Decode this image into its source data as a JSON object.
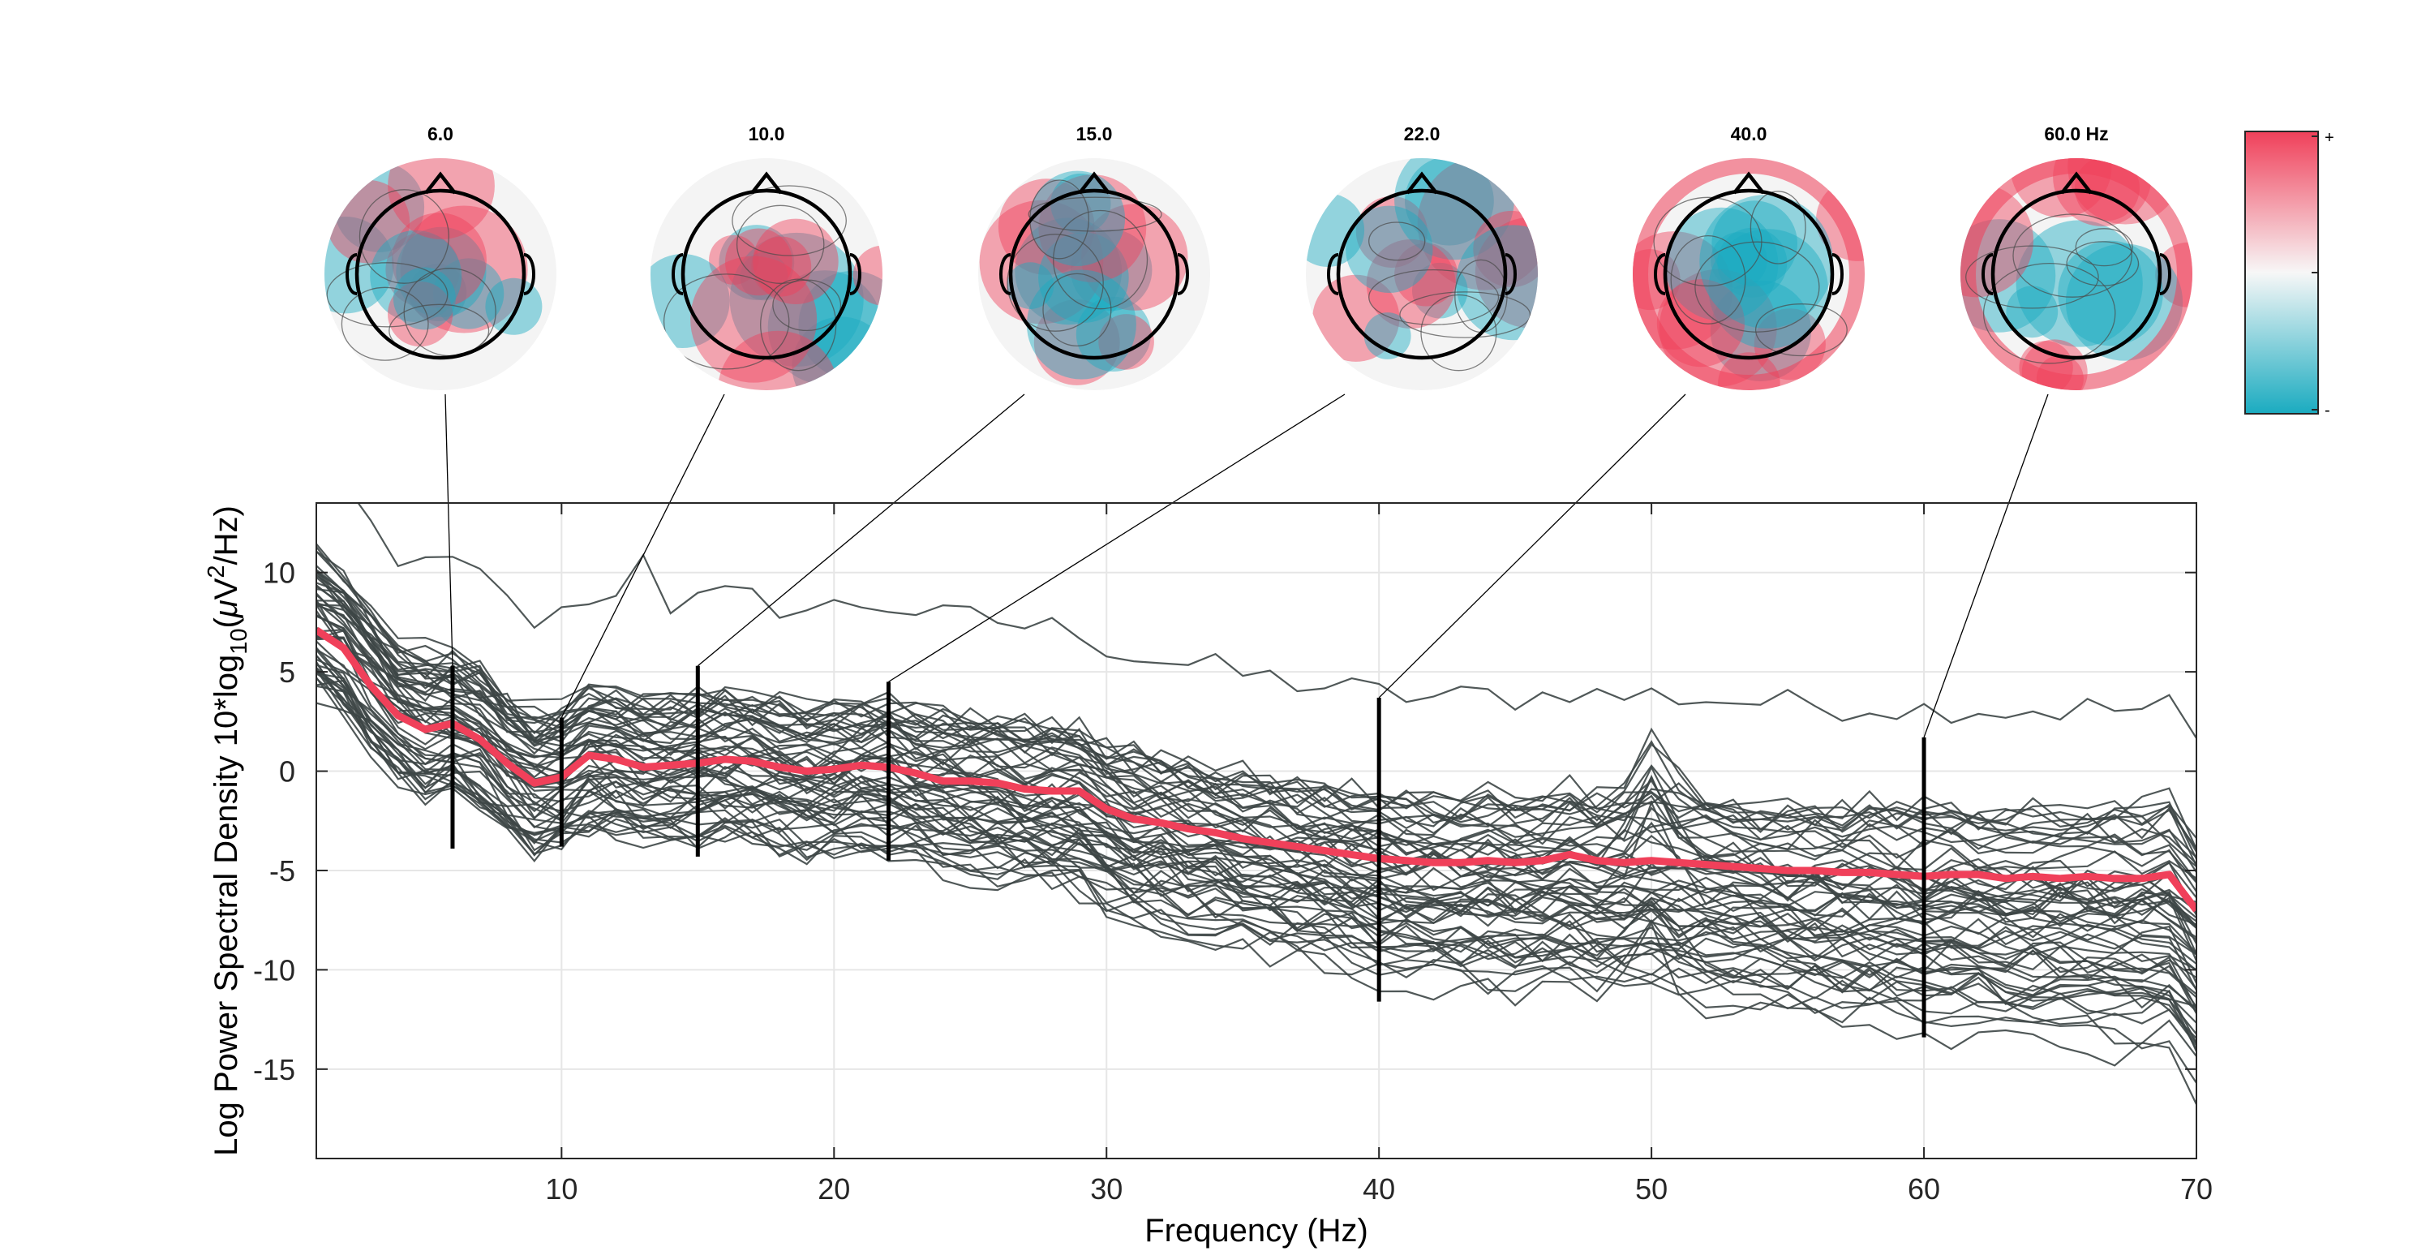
{
  "chart_data": {
    "type": "line",
    "xlabel": "Frequency (Hz)",
    "ylabel": "Log Power Spectral Density 10*log10(μV²/Hz)",
    "ylabel_parts": {
      "main": "Log Power Spectral Density 10*log",
      "sub": "10",
      "open": "(",
      "mu": "μ",
      "v": "V",
      "sup": "2",
      "rest": "/Hz)"
    },
    "xlim": [
      1,
      70
    ],
    "ylim": [
      -19.5,
      13.5
    ],
    "xticks": [
      10,
      20,
      30,
      40,
      50,
      60,
      70
    ],
    "yticks": [
      -15,
      -10,
      -5,
      0,
      5,
      10
    ],
    "grid": true,
    "mean_color": "#f0405a",
    "channel_color": "#3d4646",
    "mean_spectrum": {
      "x": [
        1,
        2,
        3,
        4,
        5,
        6,
        7,
        8,
        9,
        10,
        11,
        12,
        13,
        14,
        15,
        16,
        17,
        18,
        19,
        20,
        21,
        22,
        23,
        24,
        25,
        26,
        27,
        28,
        29,
        30,
        31,
        32,
        33,
        34,
        35,
        36,
        37,
        38,
        39,
        40,
        41,
        42,
        43,
        44,
        45,
        46,
        47,
        48,
        49,
        50,
        51,
        52,
        53,
        54,
        55,
        56,
        57,
        58,
        59,
        60,
        61,
        62,
        63,
        64,
        65,
        66,
        67,
        68,
        69,
        70
      ],
      "y": [
        7.1,
        6.2,
        4.3,
        2.8,
        2.1,
        2.4,
        1.6,
        0.4,
        -0.6,
        -0.3,
        0.8,
        0.6,
        0.2,
        0.3,
        0.4,
        0.6,
        0.5,
        0.2,
        0.0,
        0.1,
        0.3,
        0.2,
        -0.1,
        -0.5,
        -0.5,
        -0.6,
        -0.9,
        -1.0,
        -1.0,
        -1.9,
        -2.4,
        -2.6,
        -2.9,
        -3.1,
        -3.4,
        -3.6,
        -3.8,
        -4.0,
        -4.2,
        -4.4,
        -4.5,
        -4.6,
        -4.6,
        -4.5,
        -4.6,
        -4.5,
        -4.2,
        -4.5,
        -4.6,
        -4.5,
        -4.6,
        -4.7,
        -4.8,
        -4.9,
        -5.0,
        -5.0,
        -5.1,
        -5.1,
        -5.2,
        -5.3,
        -5.2,
        -5.2,
        -5.4,
        -5.3,
        -5.4,
        -5.3,
        -5.4,
        -5.4,
        -5.2,
        -7.0
      ]
    },
    "channel_count": 62,
    "markers": [
      {
        "freq": 6,
        "top": 5.3,
        "bottom": -3.9
      },
      {
        "freq": 10,
        "top": 2.7,
        "bottom": -3.8
      },
      {
        "freq": 15,
        "top": 5.3,
        "bottom": -4.3
      },
      {
        "freq": 22,
        "top": 4.5,
        "bottom": -4.5
      },
      {
        "freq": 40,
        "top": 3.7,
        "bottom": -11.6
      },
      {
        "freq": 60,
        "top": 1.7,
        "bottom": -13.4
      }
    ],
    "topoplots": [
      {
        "title": "6.0",
        "freq": 6
      },
      {
        "title": "10.0",
        "freq": 10
      },
      {
        "title": "15.0",
        "freq": 15
      },
      {
        "title": "22.0",
        "freq": 22
      },
      {
        "title": "40.0",
        "freq": 40
      },
      {
        "title": "60.0 Hz",
        "freq": 60
      }
    ],
    "colorbar": {
      "top_label": "+",
      "bottom_label": "-",
      "positive_color": "#f0405a",
      "negative_color": "#1aabc0"
    }
  }
}
